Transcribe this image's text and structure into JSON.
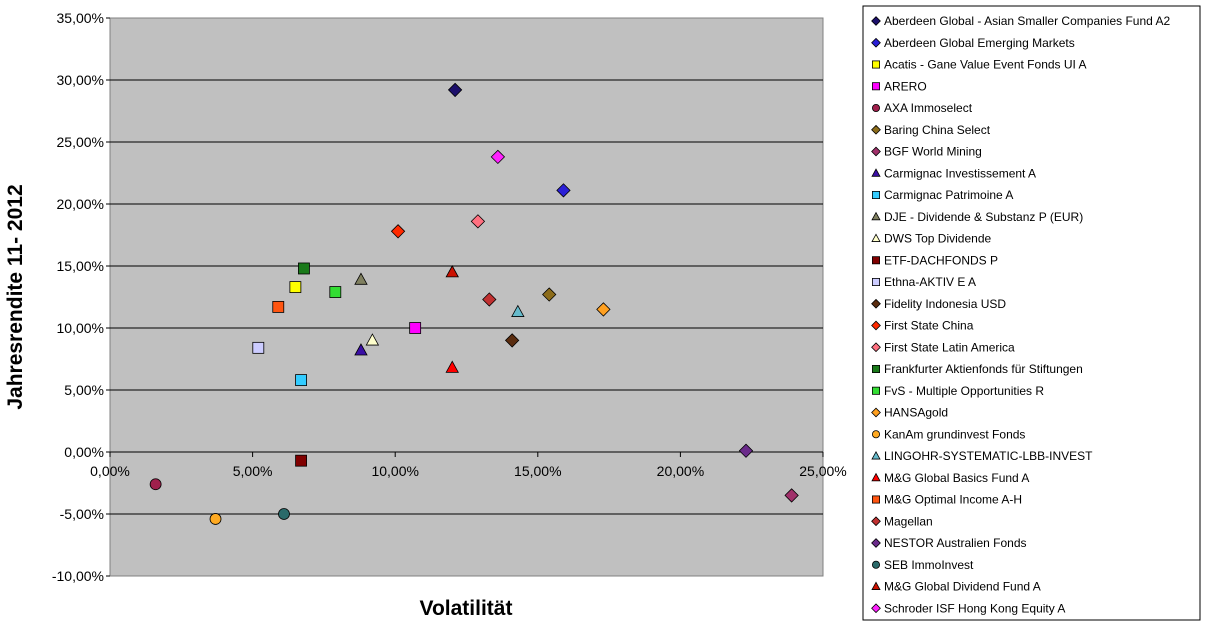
{
  "chart_data": {
    "type": "scatter",
    "title": "",
    "xlabel": "Volatilität",
    "ylabel": "Jahresrendite 11- 2012",
    "xlim": [
      0,
      25
    ],
    "ylim": [
      -10,
      35
    ],
    "x_ticks": [
      "0,00%",
      "5,00%",
      "10,00%",
      "15,00%",
      "20,00%",
      "25,00%"
    ],
    "y_ticks": [
      "-10,00%",
      "-5,00%",
      "0,00%",
      "5,00%",
      "10,00%",
      "15,00%",
      "20,00%",
      "25,00%",
      "30,00%",
      "35,00%"
    ],
    "grid": "horizontal",
    "plot_background": "#c0c0c0",
    "legend_position": "right",
    "series": [
      {
        "name": "Aberdeen Global - Asian Smaller Companies Fund A2",
        "marker": "diamond",
        "color": "#1c0f6b",
        "x": 12.1,
        "y": 29.2
      },
      {
        "name": "Aberdeen Global Emerging Markets",
        "marker": "diamond",
        "color": "#2a1fd6",
        "x": 15.9,
        "y": 21.1
      },
      {
        "name": "Acatis - Gane Value Event Fonds UI A",
        "marker": "square",
        "color": "#ffff00",
        "x": 6.5,
        "y": 13.3
      },
      {
        "name": "ARERO",
        "marker": "square",
        "color": "#ff00ff",
        "x": 10.7,
        "y": 10.0
      },
      {
        "name": "AXA Immoselect",
        "marker": "circle",
        "color": "#a0204c",
        "x": 1.6,
        "y": -2.6
      },
      {
        "name": "Baring China Select",
        "marker": "diamond",
        "color": "#8c6c1a",
        "x": 15.4,
        "y": 12.7
      },
      {
        "name": "BGF World Mining",
        "marker": "diamond",
        "color": "#a0306a",
        "x": 23.9,
        "y": -3.5
      },
      {
        "name": "Carmignac Investissement A",
        "marker": "triangle",
        "color": "#3b0fa6",
        "x": 8.8,
        "y": 8.2
      },
      {
        "name": "Carmignac Patrimoine A",
        "marker": "square",
        "color": "#33ccff",
        "x": 6.7,
        "y": 5.8
      },
      {
        "name": "DJE - Dividende & Substanz P (EUR)",
        "marker": "triangle",
        "color": "#808060",
        "x": 8.8,
        "y": 13.9
      },
      {
        "name": "DWS Top Dividende",
        "marker": "triangle",
        "color": "#ffffcc",
        "x": 9.2,
        "y": 9.0
      },
      {
        "name": "ETF-DACHFONDS P",
        "marker": "square",
        "color": "#800000",
        "x": 6.7,
        "y": -0.7
      },
      {
        "name": "Ethna-AKTIV E A",
        "marker": "square",
        "color": "#ccccff",
        "x": 5.2,
        "y": 8.4
      },
      {
        "name": "Fidelity Indonesia USD",
        "marker": "diamond",
        "color": "#5a2c0f",
        "x": 14.1,
        "y": 9.0
      },
      {
        "name": "First State China",
        "marker": "diamond",
        "color": "#ff2a00",
        "x": 10.1,
        "y": 17.8
      },
      {
        "name": "First State Latin America",
        "marker": "diamond",
        "color": "#ff7080",
        "x": 12.9,
        "y": 18.6
      },
      {
        "name": "Frankfurter Aktienfonds für Stiftungen",
        "marker": "square",
        "color": "#1a7a1a",
        "x": 6.8,
        "y": 14.8
      },
      {
        "name": "FvS - Multiple Opportunities R",
        "marker": "square",
        "color": "#33dd33",
        "x": 7.9,
        "y": 12.9
      },
      {
        "name": "HANSAgold",
        "marker": "diamond",
        "color": "#ffa020",
        "x": 17.3,
        "y": 11.5
      },
      {
        "name": "KanAm grundinvest Fonds",
        "marker": "circle",
        "color": "#ffaa22",
        "x": 3.7,
        "y": -5.4
      },
      {
        "name": "LINGOHR-SYSTEMATIC-LBB-INVEST",
        "marker": "triangle",
        "color": "#66bbcc",
        "x": 14.3,
        "y": 11.3
      },
      {
        "name": "M&G Global Basics Fund A",
        "marker": "triangle",
        "color": "#ff0000",
        "x": 12.0,
        "y": 6.8
      },
      {
        "name": "M&G Optimal Income A-H",
        "marker": "square",
        "color": "#ff5511",
        "x": 5.9,
        "y": 11.7
      },
      {
        "name": "Magellan",
        "marker": "diamond",
        "color": "#c03030",
        "x": 13.3,
        "y": 12.3
      },
      {
        "name": "NESTOR Australien Fonds",
        "marker": "diamond",
        "color": "#6a2a8a",
        "x": 22.3,
        "y": 0.1
      },
      {
        "name": "SEB ImmoInvest",
        "marker": "circle",
        "color": "#2a6a6a",
        "x": 6.1,
        "y": -5.0
      },
      {
        "name": "M&G Global Dividend Fund A",
        "marker": "triangle",
        "color": "#cc1100",
        "x": 12.0,
        "y": 14.5
      },
      {
        "name": "Schroder ISF Hong Kong Equity A",
        "marker": "diamond",
        "color": "#ff22ff",
        "x": 13.6,
        "y": 23.8
      }
    ]
  }
}
